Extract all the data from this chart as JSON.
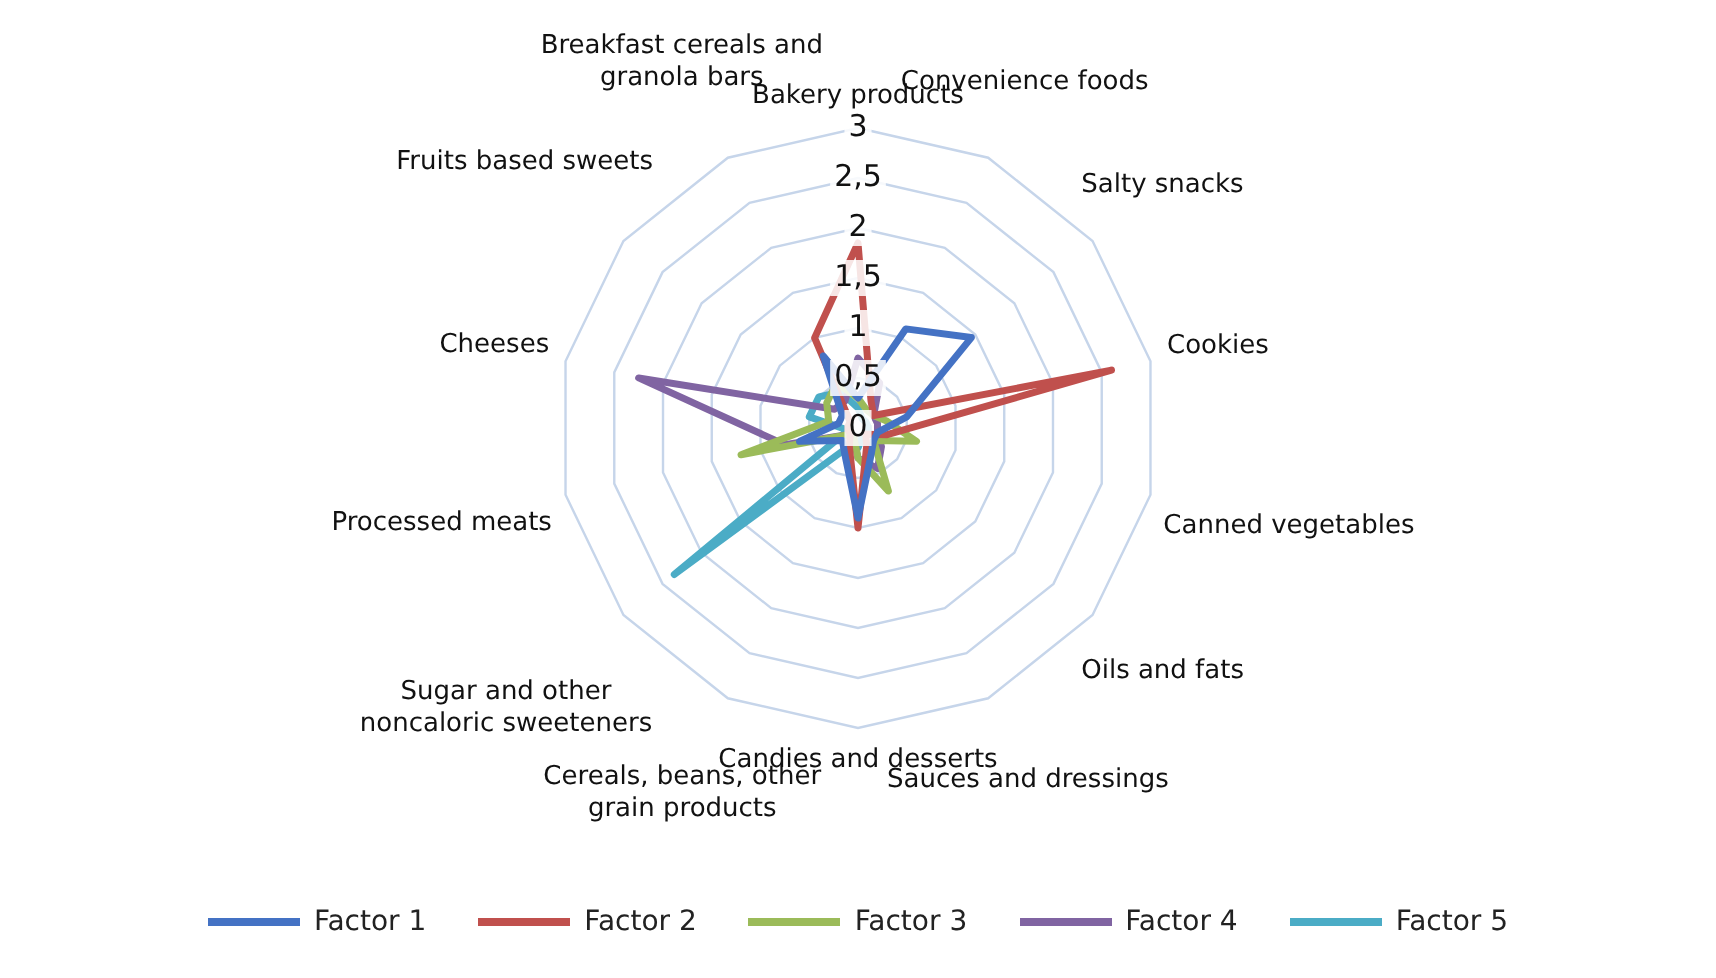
{
  "chart_data": {
    "type": "radar",
    "categories": [
      "Bakery products",
      "Convenience foods",
      "Salty snacks",
      "Cookies",
      "Canned vegetables",
      "Oils and fats",
      "Sauces and dressings",
      "Candies and desserts",
      "Cereals, beans, other grain products",
      "Sugar and other noncaloric sweeteners",
      "Processed meats",
      "Cheeses",
      "Fruits based sweets",
      "Breakfast cereals and granola bars"
    ],
    "series": [
      {
        "name": "Factor 1",
        "color": "#4472c4",
        "values": [
          0.3,
          1.1,
          1.45,
          0.5,
          0.2,
          0.2,
          0.3,
          0.9,
          0.3,
          0.2,
          0.6,
          0.2,
          0.2,
          0.8
        ]
      },
      {
        "name": "Factor 2",
        "color": "#c0504d",
        "values": [
          1.85,
          0.3,
          0.2,
          2.6,
          0.3,
          0.1,
          0.2,
          1.0,
          0.2,
          0.1,
          0.1,
          0.1,
          0.1,
          1.0
        ]
      },
      {
        "name": "Factor 3",
        "color": "#9bbb59",
        "values": [
          0.3,
          0.2,
          0.2,
          0.3,
          0.6,
          0.2,
          0.7,
          0.3,
          0.1,
          0.1,
          1.2,
          0.3,
          0.4,
          0.5
        ]
      },
      {
        "name": "Factor 4",
        "color": "#8064a2",
        "values": [
          0.7,
          0.5,
          0.2,
          0.2,
          0.2,
          0.3,
          0.45,
          0.3,
          0.1,
          0.1,
          0.75,
          2.25,
          0.3,
          0.3
        ]
      },
      {
        "name": "Factor 5",
        "color": "#4bacc6",
        "values": [
          0.2,
          0.1,
          0.1,
          0.1,
          0.1,
          0.1,
          0.1,
          0.2,
          0.2,
          2.35,
          0.1,
          0.5,
          0.5,
          0.4
        ]
      }
    ],
    "ylim": [
      0,
      3
    ],
    "yticks": [
      0,
      {
        "value": 0.5,
        "label": "0,5"
      },
      1,
      {
        "value": 1.5,
        "label": "1,5"
      },
      2,
      {
        "value": 2.5,
        "label": "2,5"
      },
      3
    ],
    "grid": true,
    "legend": "bottom",
    "marker": "none",
    "line_style": "solid"
  }
}
